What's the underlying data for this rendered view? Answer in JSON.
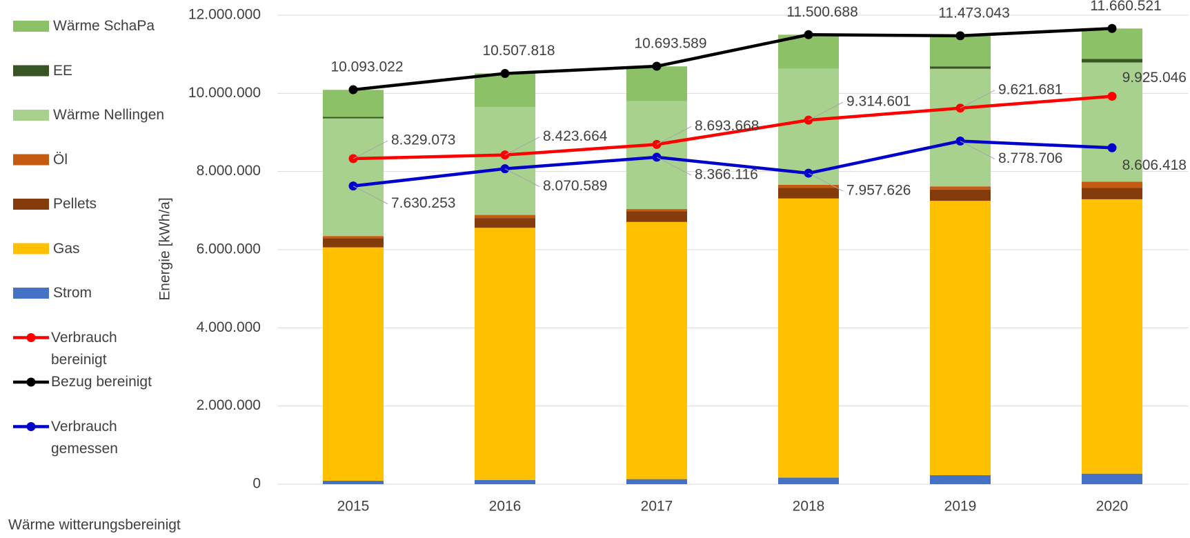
{
  "chart_data": {
    "type": "bar",
    "stacked": true,
    "y_axis_label": "Energie [kWh/a]",
    "note": "Wärme witterungsbereinigt",
    "categories": [
      "2015",
      "2016",
      "2017",
      "2018",
      "2019",
      "2020"
    ],
    "ylim": [
      0,
      12000000
    ],
    "yticks": [
      0,
      {
        "value": 2000000,
        "label": "2.000.000"
      },
      {
        "value": 4000000,
        "label": "4.000.000"
      },
      {
        "value": 6000000,
        "label": "6.000.000"
      },
      {
        "value": 8000000,
        "label": "8.000.000"
      },
      {
        "value": 10000000,
        "label": "10.000.000"
      },
      {
        "value": 12000000,
        "label": "12.000.000"
      }
    ],
    "grid": true,
    "legend": "left",
    "series": [
      {
        "name": "Strom",
        "type": "bar",
        "color": "#4472c4",
        "values": [
          90000,
          110000,
          130000,
          170000,
          230000,
          270000
        ]
      },
      {
        "name": "Gas",
        "type": "bar",
        "color": "#ffc000",
        "values": [
          5970000,
          6450000,
          6580000,
          7140000,
          7020000,
          7020000
        ]
      },
      {
        "name": "Pellets",
        "type": "bar",
        "color": "#843c0c",
        "values": [
          230000,
          250000,
          270000,
          270000,
          290000,
          290000
        ]
      },
      {
        "name": "Öl",
        "type": "bar",
        "color": "#c55a11",
        "values": [
          60000,
          80000,
          60000,
          80000,
          80000,
          160000
        ]
      },
      {
        "name": "Wärme Nellingen",
        "type": "bar",
        "color": "#a9d18e",
        "values": [
          3010000,
          2760000,
          2760000,
          2970000,
          3010000,
          3050000
        ]
      },
      {
        "name": "EE",
        "type": "bar",
        "color": "#375623",
        "values": [
          40000,
          0,
          0,
          0,
          60000,
          90000
        ]
      },
      {
        "name": "Wärme SchaPa",
        "type": "bar",
        "color": "#8cc168",
        "values": [
          690000,
          860000,
          890000,
          870000,
          780000,
          780000
        ]
      },
      {
        "name": "Verbrauch bereinigt",
        "type": "line",
        "color": "#ff0000",
        "label_pos": "upper",
        "values": [
          8329073,
          8423664,
          8693668,
          9314601,
          9621681,
          9925046
        ],
        "value_labels": [
          "8.329.073",
          "8.423.664",
          "8.693.668",
          "9.314.601",
          "9.621.681",
          "9.925.046"
        ]
      },
      {
        "name": "Bezug bereinigt",
        "type": "line",
        "color": "#000000",
        "label_pos": "top",
        "values": [
          10093022,
          10507818,
          10693589,
          11500688,
          11473043,
          11660521
        ],
        "value_labels": [
          "10.093.022",
          "10.507.818",
          "10.693.589",
          "11.500.688",
          "11.473.043",
          "11.660.521"
        ]
      },
      {
        "name": "Verbrauch gemessen",
        "type": "line",
        "color": "#0000cc",
        "label_pos": "lower",
        "values": [
          7630253,
          8070589,
          8366116,
          7957626,
          8778706,
          8606418
        ],
        "value_labels": [
          "7.630.253",
          "8.070.589",
          "8.366.116",
          "7.957.626",
          "8.778.706",
          "8.606.418"
        ]
      }
    ]
  }
}
